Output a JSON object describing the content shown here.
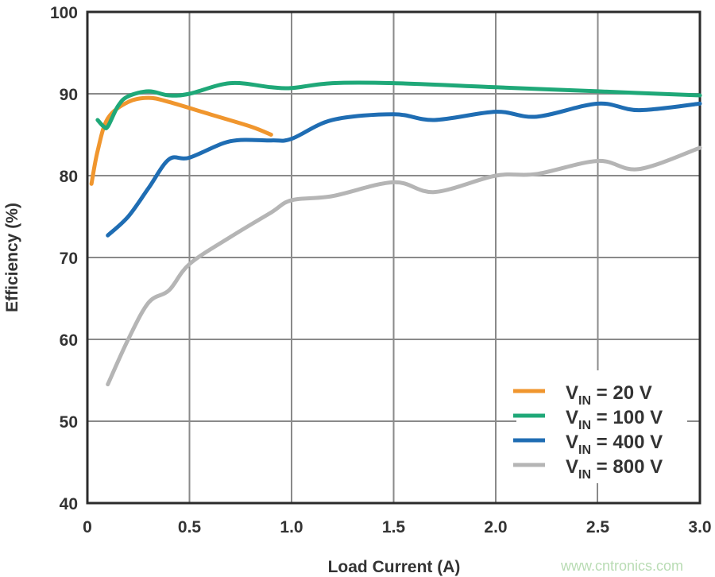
{
  "chart_data": {
    "type": "line",
    "title": "",
    "xlabel": "Load Current (A)",
    "ylabel": "Efficiency (%)",
    "xlim": [
      0,
      3.0
    ],
    "ylim": [
      40,
      100
    ],
    "xticks": [
      "0",
      "0.5",
      "1.0",
      "1.5",
      "2.0",
      "2.5",
      "3.0"
    ],
    "yticks": [
      "40",
      "50",
      "60",
      "70",
      "80",
      "90",
      "100"
    ],
    "grid": true,
    "legend_position": "bottom-right",
    "series": [
      {
        "name": "V_IN = 20 V",
        "label_main": "V",
        "label_sub": "IN",
        "label_rest": " = 20 V",
        "color": "#f0962e",
        "x": [
          0.02,
          0.05,
          0.1,
          0.2,
          0.3,
          0.4,
          0.6,
          0.8,
          0.9
        ],
        "y": [
          79,
          83,
          87,
          89,
          89.5,
          89,
          87.5,
          86,
          85
        ]
      },
      {
        "name": "V_IN = 100 V",
        "label_main": "V",
        "label_sub": "IN",
        "label_rest": " = 100 V",
        "color": "#1fa878",
        "x": [
          0.05,
          0.08,
          0.1,
          0.15,
          0.2,
          0.3,
          0.4,
          0.5,
          0.7,
          0.9,
          1.0,
          1.2,
          1.5,
          2.0,
          2.5,
          3.0
        ],
        "y": [
          86.8,
          86,
          86,
          88.5,
          89.7,
          90.3,
          89.8,
          90,
          91.3,
          90.8,
          90.7,
          91.3,
          91.3,
          90.8,
          90.3,
          89.8
        ]
      },
      {
        "name": "V_IN = 400 V",
        "label_main": "V",
        "label_sub": "IN",
        "label_rest": " = 400 V",
        "color": "#1f6db3",
        "x": [
          0.1,
          0.2,
          0.3,
          0.4,
          0.5,
          0.7,
          0.9,
          1.0,
          1.2,
          1.5,
          1.7,
          2.0,
          2.2,
          2.5,
          2.7,
          3.0
        ],
        "y": [
          72.7,
          75,
          78.5,
          82,
          82.2,
          84.2,
          84.3,
          84.5,
          86.8,
          87.5,
          86.8,
          87.8,
          87.2,
          88.8,
          88,
          88.8
        ]
      },
      {
        "name": "V_IN = 800 V",
        "label_main": "V",
        "label_sub": "IN",
        "label_rest": " = 800 V",
        "color": "#b5b5b5",
        "x": [
          0.1,
          0.2,
          0.3,
          0.4,
          0.5,
          0.7,
          0.9,
          1.0,
          1.2,
          1.5,
          1.7,
          2.0,
          2.2,
          2.5,
          2.7,
          3.0
        ],
        "y": [
          54.5,
          60,
          64.5,
          66,
          69.2,
          72.5,
          75.5,
          77,
          77.5,
          79.2,
          78,
          80,
          80.2,
          81.8,
          80.8,
          83.4
        ]
      }
    ]
  },
  "watermark": "www.cntronics.com"
}
